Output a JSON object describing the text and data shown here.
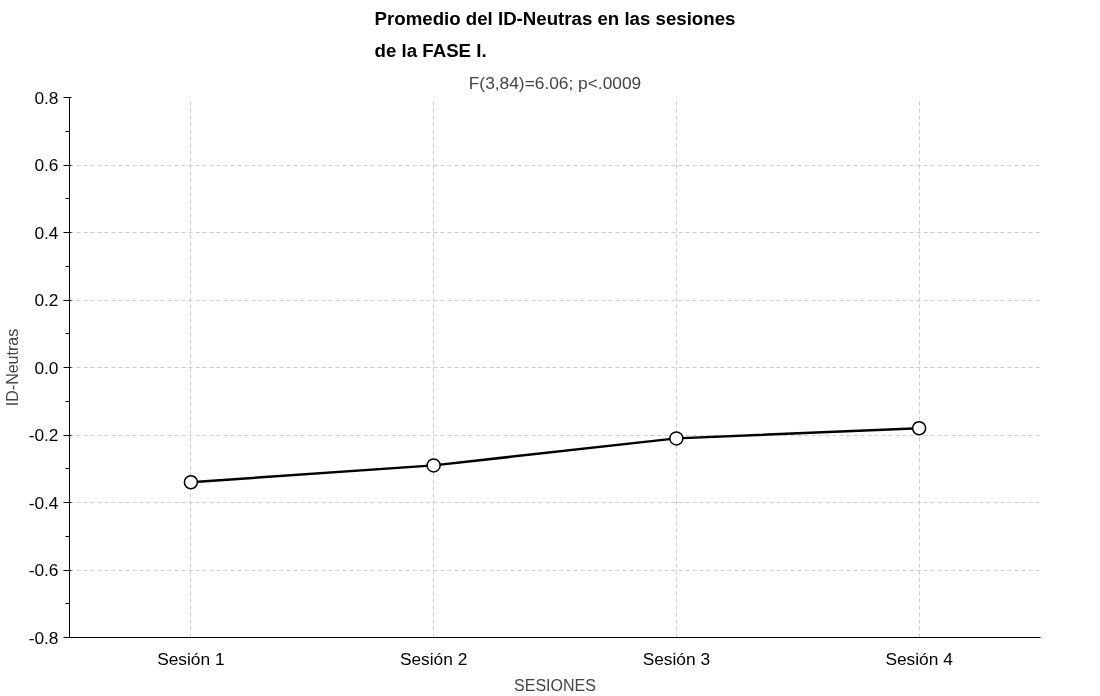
{
  "chart_data": {
    "type": "line",
    "title": "Promedio del ID-Neutras en las sesiones\nde la FASE I.",
    "subtitle": "F(3,84)=6.06; p<.0009",
    "xlabel": "SESIONES",
    "ylabel": "ID-Neutras",
    "categories": [
      "Sesión 1",
      "Sesión 2",
      "Sesión 3",
      "Sesión 4"
    ],
    "series": [
      {
        "color": "#000000",
        "values": [
          -0.34,
          -0.29,
          -0.21,
          -0.18
        ]
      }
    ],
    "ylim": [
      -0.8,
      0.8
    ],
    "yticks": [
      {
        "value": -0.8,
        "label": "-0.8"
      },
      {
        "value": -0.6,
        "label": "-0.6"
      },
      {
        "value": -0.4,
        "label": "-0.4"
      },
      {
        "value": -0.2,
        "label": "-0.2"
      },
      {
        "value": 0,
        "label": "0.0"
      },
      {
        "value": 0.2,
        "label": "0.2"
      },
      {
        "value": 0.4,
        "label": "0.4"
      },
      {
        "value": 0.6,
        "label": "0.6"
      },
      {
        "value": 0.8,
        "label": "0.8"
      }
    ],
    "grid": true,
    "marker": "circle",
    "line_style": "solid"
  }
}
